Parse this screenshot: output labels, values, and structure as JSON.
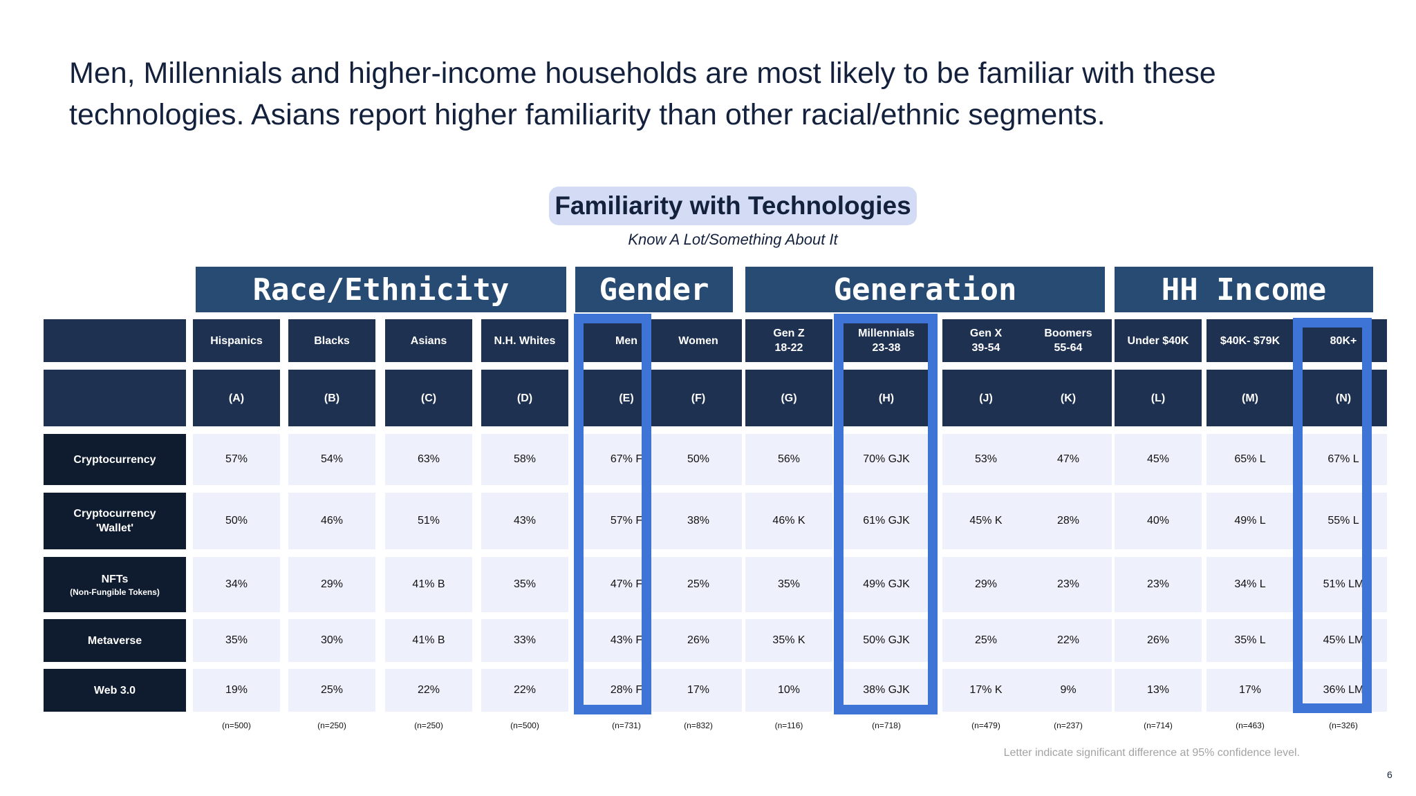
{
  "headline": "Men, Millennials and higher-income households are most likely to be familiar with these technologies. Asians report higher familiarity than other racial/ethnic segments.",
  "chart": {
    "title": "Familiarity with Technologies",
    "subtitle": "Know A Lot/Something About It"
  },
  "groups": [
    "Race/Ethnicity",
    "Gender",
    "Generation",
    "HH Income"
  ],
  "columns": [
    {
      "label": [
        "Hispanics"
      ],
      "code": "(A)",
      "n": "(n=500)"
    },
    {
      "label": [
        "Blacks"
      ],
      "code": "(B)",
      "n": "(n=250)"
    },
    {
      "label": [
        "Asians"
      ],
      "code": "(C)",
      "n": "(n=250)"
    },
    {
      "label": [
        "N.H. Whites"
      ],
      "code": "(D)",
      "n": "(n=500)"
    },
    {
      "label": [
        "Men"
      ],
      "code": "(E)",
      "n": "(n=731)"
    },
    {
      "label": [
        "Women"
      ],
      "code": "(F)",
      "n": "(n=832)"
    },
    {
      "label": [
        "Gen Z",
        "18-22"
      ],
      "code": "(G)",
      "n": "(n=116)"
    },
    {
      "label": [
        "Millennials",
        "23-38"
      ],
      "code": "(H)",
      "n": "(n=718)"
    },
    {
      "label": [
        "Gen X",
        "39-54"
      ],
      "code": "(J)",
      "n": "(n=479)"
    },
    {
      "label": [
        "Boomers",
        "55-64"
      ],
      "code": "(K)",
      "n": "(n=237)"
    },
    {
      "label": [
        "Under $40K"
      ],
      "code": "(L)",
      "n": "(n=714)"
    },
    {
      "label": [
        "$40K- $79K"
      ],
      "code": "(M)",
      "n": "(n=463)"
    },
    {
      "label": [
        "80K+"
      ],
      "code": "(N)",
      "n": "(n=326)"
    }
  ],
  "rows": [
    {
      "label": "Cryptocurrency",
      "values": [
        "57%",
        "54%",
        "63%",
        "58%",
        "67% F",
        "50%",
        "56%",
        "70% GJK",
        "53%",
        "47%",
        "45%",
        "65% L",
        "67% L"
      ]
    },
    {
      "label": "Cryptocurrency 'Wallet'",
      "values": [
        "50%",
        "46%",
        "51%",
        "43%",
        "57% F",
        "38%",
        "46% K",
        "61% GJK",
        "45% K",
        "28%",
        "40%",
        "49% L",
        "55% L"
      ]
    },
    {
      "label": "NFTs",
      "sublabel": "(Non-Fungible Tokens)",
      "values": [
        "34%",
        "29%",
        "41% B",
        "35%",
        "47% F",
        "25%",
        "35%",
        "49% GJK",
        "29%",
        "23%",
        "23%",
        "34% L",
        "51% LM"
      ]
    },
    {
      "label": "Metaverse",
      "values": [
        "35%",
        "30%",
        "41% B",
        "33%",
        "43% F",
        "26%",
        "35% K",
        "50% GJK",
        "25%",
        "22%",
        "26%",
        "35% L",
        "45% LM"
      ]
    },
    {
      "label": "Web 3.0",
      "values": [
        "19%",
        "25%",
        "22%",
        "22%",
        "28% F",
        "17%",
        "10%",
        "38% GJK",
        "17% K",
        "9%",
        "13%",
        "17%",
        "36% LM"
      ]
    }
  ],
  "footnote": "Letter indicate significant difference at 95% confidence level.",
  "page_number": "6",
  "colors": {
    "accent": "#3d74d6",
    "header": "#1f3150",
    "group": "#284b73",
    "cell": "#eef1fb",
    "title_bg": "#d3dcf4"
  }
}
